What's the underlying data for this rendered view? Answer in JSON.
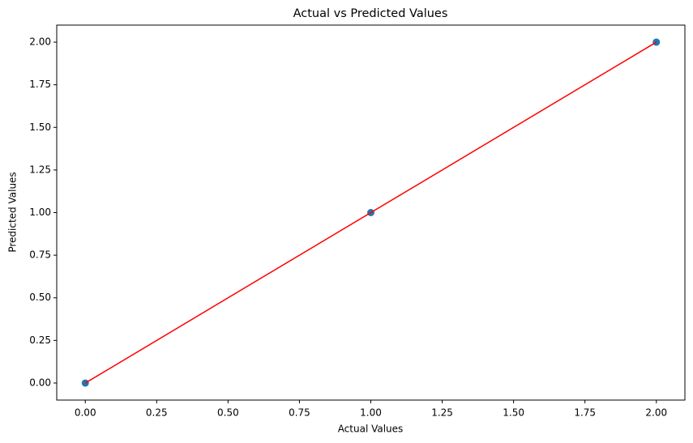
{
  "chart_data": {
    "type": "scatter",
    "title": "Actual vs Predicted Values",
    "x_label": "Actual Values",
    "y_label": "Predicted Values",
    "series": [
      {
        "type": "scatter",
        "color": "#1f77b4",
        "x": [
          0,
          1,
          2
        ],
        "values": [
          0,
          1,
          2
        ]
      },
      {
        "type": "line",
        "color": "#ff0000",
        "x": [
          0,
          2
        ],
        "values": [
          0,
          2
        ]
      }
    ],
    "xlim": [
      -0.1,
      2.1
    ],
    "ylim": [
      -0.1,
      2.1
    ],
    "xticks": [
      {
        "value": 0,
        "label": "0.00"
      },
      {
        "value": 0.25,
        "label": "0.25"
      },
      {
        "value": 0.5,
        "label": "0.50"
      },
      {
        "value": 0.75,
        "label": "0.75"
      },
      {
        "value": 1,
        "label": "1.00"
      },
      {
        "value": 1.25,
        "label": "1.25"
      },
      {
        "value": 1.5,
        "label": "1.50"
      },
      {
        "value": 1.75,
        "label": "1.75"
      },
      {
        "value": 2,
        "label": "2.00"
      }
    ],
    "yticks": [
      {
        "value": 0,
        "label": "0.00"
      },
      {
        "value": 0.25,
        "label": "0.25"
      },
      {
        "value": 0.5,
        "label": "0.50"
      },
      {
        "value": 0.75,
        "label": "0.75"
      },
      {
        "value": 1,
        "label": "1.00"
      },
      {
        "value": 1.25,
        "label": "1.25"
      },
      {
        "value": 1.5,
        "label": "1.50"
      },
      {
        "value": 1.75,
        "label": "1.75"
      },
      {
        "value": 2,
        "label": "2.00"
      }
    ],
    "grid": false
  }
}
